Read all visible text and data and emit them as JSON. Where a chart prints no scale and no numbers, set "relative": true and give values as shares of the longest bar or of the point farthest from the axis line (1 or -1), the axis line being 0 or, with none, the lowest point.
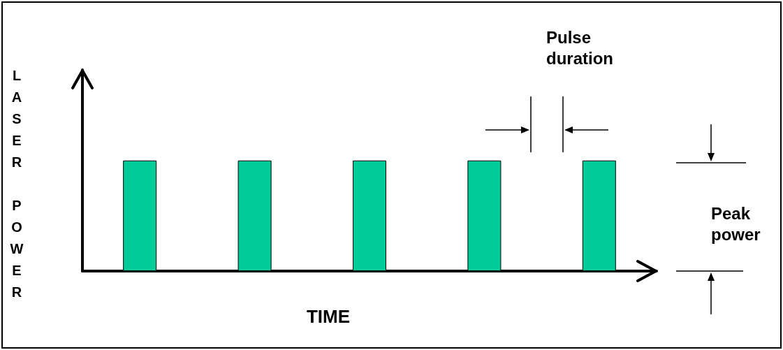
{
  "chart_data": {
    "type": "bar",
    "relative": true,
    "categories": [
      null,
      null,
      null,
      null,
      null
    ],
    "values": [
      1,
      1,
      1,
      1,
      1
    ],
    "color": "#00cc99",
    "xlabel": "TIME",
    "ylabel": "LASER POWER",
    "annotations": [
      "Pulse duration",
      "Peak power"
    ]
  }
}
